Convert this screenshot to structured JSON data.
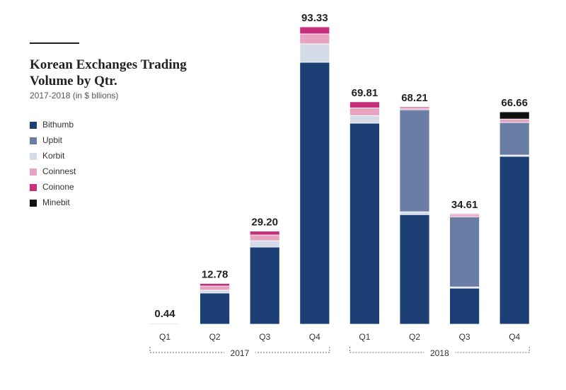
{
  "chart_data": {
    "type": "stacked_bar",
    "title": "Korean Exchanges Trading Volume by Qtr.",
    "subtitle": "2017-2018 (in $ bllions)",
    "groups": [
      {
        "name": "2017",
        "categories": [
          "Q1",
          "Q2",
          "Q3",
          "Q4"
        ]
      },
      {
        "name": "2018",
        "categories": [
          "Q1",
          "Q2",
          "Q3",
          "Q4"
        ]
      }
    ],
    "series": [
      {
        "name": "Bithumb",
        "color": "#1c3f75",
        "values": [
          0.2,
          9.78,
          24.2,
          82.2,
          63.1,
          34.4,
          11.3,
          52.7
        ]
      },
      {
        "name": "Korbit",
        "color": "#d6dbe8",
        "values": [
          0.1,
          0.9,
          2.0,
          5.83,
          2.4,
          0.9,
          0.4,
          0.4
        ]
      },
      {
        "name": "Upbit",
        "color": "#6a7da5",
        "values": [
          0,
          0,
          0,
          0,
          0,
          32.0,
          22.0,
          10.2
        ]
      },
      {
        "name": "Coinnest",
        "color": "#e8a3c0",
        "values": [
          0.1,
          1.3,
          1.8,
          3.1,
          2.4,
          0.5,
          0.6,
          1.1
        ]
      },
      {
        "name": "Coinone",
        "color": "#c7307c",
        "values": [
          0.04,
          0.8,
          1.2,
          2.2,
          1.91,
          0.41,
          0.31,
          0
        ]
      },
      {
        "name": "Minebit",
        "color": "#111111",
        "values": [
          0,
          0,
          0,
          0,
          0,
          0,
          0,
          2.26
        ]
      }
    ],
    "legend_order": [
      "Bithumb",
      "Upbit",
      "Korbit",
      "Coinnest",
      "Coinone",
      "Minebit"
    ],
    "totals": [
      0.44,
      12.78,
      29.2,
      93.33,
      69.81,
      68.21,
      34.61,
      66.66
    ],
    "total_labels": [
      "0.44",
      "12.78",
      "29.20",
      "93.33",
      "69.81",
      "68.21",
      "34.61",
      "66.66"
    ]
  }
}
